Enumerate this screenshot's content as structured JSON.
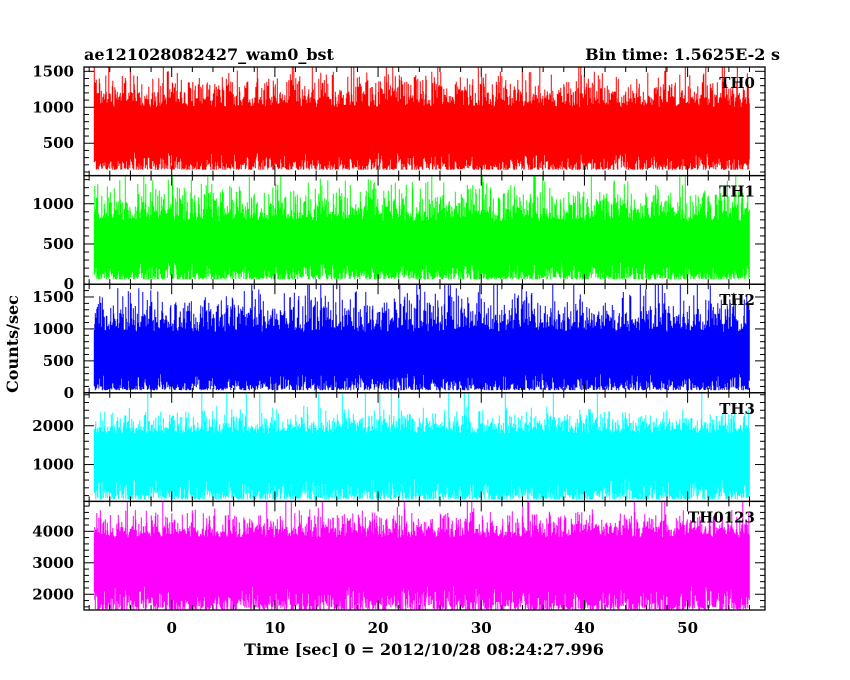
{
  "chart_data": {
    "type": "line",
    "title": "ae121028082427_wam0_bst",
    "subtitle": "Bin time: 1.5625E-2 s",
    "xlabel": "Time [sec] 0 = 2012/10/28 08:24:27.996",
    "ylabel": "Counts/sec",
    "xlim": [
      -8.5,
      57.5
    ],
    "data_range": [
      -7.5,
      56.0
    ],
    "x_ticks": [
      0,
      10,
      20,
      30,
      40,
      50
    ],
    "x_tick_labels": [
      "0",
      "10",
      "20",
      "30",
      "40",
      "50"
    ],
    "x_minor_step": 2,
    "grid": false,
    "legend": "none",
    "series": [
      {
        "name": "TH0",
        "color": "#ff0000",
        "ylim": [
          50,
          1560
        ],
        "y_ticks": [
          500,
          1000,
          1500
        ],
        "y_tick_labels": [
          "500",
          "1000",
          "1500"
        ],
        "minor_step": 100,
        "mean": 700,
        "noise_low": [
          130,
          380
        ],
        "noise_high": [
          1000,
          1560
        ]
      },
      {
        "name": "TH1",
        "color": "#00ff00",
        "ylim": [
          0,
          1350
        ],
        "y_ticks": [
          0,
          500,
          1000
        ],
        "y_tick_labels": [
          "0",
          "500",
          "1000"
        ],
        "minor_step": 100,
        "mean": 520,
        "noise_low": [
          60,
          280
        ],
        "noise_high": [
          780,
          1350
        ]
      },
      {
        "name": "TH2",
        "color": "#0000ff",
        "ylim": [
          0,
          1700
        ],
        "y_ticks": [
          0,
          500,
          1000,
          1500
        ],
        "y_tick_labels": [
          "0",
          "500",
          "1000",
          "1500"
        ],
        "minor_step": 100,
        "mean": 650,
        "noise_low": [
          40,
          320
        ],
        "noise_high": [
          950,
          1700
        ]
      },
      {
        "name": "TH3",
        "color": "#00ffff",
        "ylim": [
          50,
          2850
        ],
        "y_ticks": [
          1000,
          2000
        ],
        "y_tick_labels": [
          "1000",
          "2000"
        ],
        "minor_step": 200,
        "mean": 1200,
        "noise_low": [
          100,
          650
        ],
        "noise_high": [
          1800,
          2550
        ]
      },
      {
        "name": "TH0123",
        "color": "#ff00ff",
        "ylim": [
          1500,
          4950
        ],
        "y_ticks": [
          2000,
          3000,
          4000
        ],
        "y_tick_labels": [
          "2000",
          "3000",
          "4000"
        ],
        "minor_step": 200,
        "mean": 2900,
        "noise_low": [
          1500,
          2300
        ],
        "noise_high": [
          3800,
          4850
        ]
      }
    ]
  }
}
